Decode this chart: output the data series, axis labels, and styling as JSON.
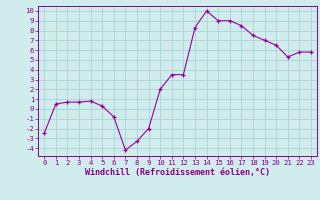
{
  "x": [
    0,
    1,
    2,
    3,
    4,
    5,
    6,
    7,
    8,
    9,
    10,
    11,
    12,
    13,
    14,
    15,
    16,
    17,
    18,
    19,
    20,
    21,
    22,
    23
  ],
  "y": [
    -2.5,
    0.5,
    0.7,
    0.7,
    0.8,
    0.3,
    -0.8,
    -4.2,
    -3.3,
    -2.0,
    2.0,
    3.5,
    3.5,
    8.3,
    10.0,
    9.0,
    9.0,
    8.5,
    7.5,
    7.0,
    6.5,
    5.3,
    5.8,
    5.8
  ],
  "xlim": [
    -0.5,
    23.5
  ],
  "ylim": [
    -4.8,
    10.5
  ],
  "yticks": [
    -4,
    -3,
    -2,
    -1,
    0,
    1,
    2,
    3,
    4,
    5,
    6,
    7,
    8,
    9,
    10
  ],
  "xticks": [
    0,
    1,
    2,
    3,
    4,
    5,
    6,
    7,
    8,
    9,
    10,
    11,
    12,
    13,
    14,
    15,
    16,
    17,
    18,
    19,
    20,
    21,
    22,
    23
  ],
  "xlabel": "Windchill (Refroidissement éolien,°C)",
  "line_color": "#990099",
  "marker": "+",
  "bg_color": "#d0ecec",
  "grid_color": "#a0d0d0",
  "text_color": "#880088",
  "tick_label_size": 5.2,
  "xlabel_size": 6.0
}
